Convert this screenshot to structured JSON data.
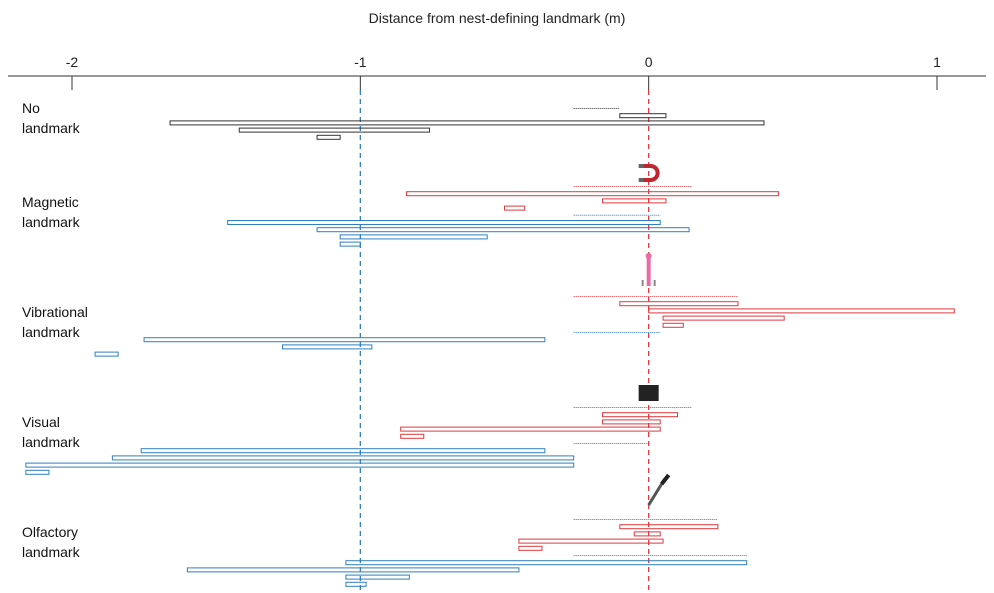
{
  "colors": {
    "control": "#333333",
    "landmark": "#e0393e",
    "no_landmark": "#2f7fc1",
    "ref_minus1": "#2f7fc1",
    "ref_zero": "#e0393e"
  },
  "chart_data": {
    "type": "horizontal-interval",
    "title": "",
    "xlabel": "Distance from nest-defining landmark (m)",
    "xlim": [
      -2.2,
      1.15
    ],
    "xticks": [
      -2,
      -1,
      0,
      1
    ],
    "xtick_labels": [
      "-2",
      "-1",
      "0",
      "1"
    ],
    "reference_lines": [
      -1,
      0
    ],
    "groups": [
      {
        "label": "No\nlandmark",
        "icon": "none",
        "bars": [
          {
            "series": "control",
            "x0": -0.26,
            "x1": -0.1,
            "dotted": true
          },
          {
            "series": "control",
            "x0": -0.1,
            "x1": 0.06
          },
          {
            "series": "control",
            "x0": -1.66,
            "x1": 0.4
          },
          {
            "series": "control",
            "x0": -1.42,
            "x1": -0.76
          },
          {
            "series": "control",
            "x0": -1.15,
            "x1": -1.07
          }
        ]
      },
      {
        "label": "Magnetic\nlandmark",
        "icon": "magnet-icon",
        "bars": [
          {
            "series": "landmark",
            "x0": -0.26,
            "x1": 0.15,
            "dotted": true
          },
          {
            "series": "landmark",
            "x0": -0.84,
            "x1": 0.45
          },
          {
            "series": "landmark",
            "x0": -0.16,
            "x1": 0.06
          },
          {
            "series": "landmark",
            "x0": -0.5,
            "x1": -0.43
          },
          {
            "series": "no_landmark",
            "x0": -0.26,
            "x1": 0.04,
            "dotted": true
          },
          {
            "series": "no_landmark",
            "x0": -1.46,
            "x1": 0.04
          },
          {
            "series": "no_landmark",
            "x0": -1.15,
            "x1": 0.14
          },
          {
            "series": "no_landmark",
            "x0": -1.07,
            "x1": -0.56
          },
          {
            "series": "no_landmark",
            "x0": -1.07,
            "x1": -1.0
          }
        ]
      },
      {
        "label": "Vibrational\nlandmark",
        "icon": "vibration-icon",
        "bars": [
          {
            "series": "landmark",
            "x0": -0.26,
            "x1": 0.31,
            "dotted": true
          },
          {
            "series": "landmark",
            "x0": -0.1,
            "x1": 0.31
          },
          {
            "series": "landmark",
            "x0": 0.0,
            "x1": 1.06
          },
          {
            "series": "landmark",
            "x0": 0.05,
            "x1": 0.47
          },
          {
            "series": "landmark",
            "x0": 0.05,
            "x1": 0.12
          },
          {
            "series": "no_landmark",
            "x0": -0.26,
            "x1": 0.04,
            "dotted": true
          },
          {
            "series": "no_landmark",
            "x0": -1.75,
            "x1": -0.36
          },
          {
            "series": "no_landmark",
            "x0": -1.27,
            "x1": -0.96
          },
          {
            "series": "no_landmark",
            "x0": -1.92,
            "x1": -1.84
          }
        ]
      },
      {
        "label": "Visual\nlandmark",
        "icon": "square-icon",
        "bars": [
          {
            "series": "landmark",
            "x0": -0.26,
            "x1": 0.15,
            "dotted": true
          },
          {
            "series": "landmark",
            "x0": -0.16,
            "x1": 0.1
          },
          {
            "series": "landmark",
            "x0": -0.16,
            "x1": 0.04
          },
          {
            "series": "landmark",
            "x0": -0.86,
            "x1": 0.04
          },
          {
            "series": "landmark",
            "x0": -0.86,
            "x1": -0.78
          },
          {
            "series": "no_landmark",
            "x0": -0.26,
            "x1": 0.0,
            "dotted": true
          },
          {
            "series": "no_landmark",
            "x0": -1.76,
            "x1": -0.36
          },
          {
            "series": "no_landmark",
            "x0": -1.86,
            "x1": -0.26
          },
          {
            "series": "no_landmark",
            "x0": -2.16,
            "x1": -0.26
          },
          {
            "series": "no_landmark",
            "x0": -2.16,
            "x1": -2.08
          }
        ]
      },
      {
        "label": "Olfactory\nlandmark",
        "icon": "pipette-icon",
        "bars": [
          {
            "series": "landmark",
            "x0": -0.26,
            "x1": 0.24,
            "dotted": true
          },
          {
            "series": "landmark",
            "x0": -0.1,
            "x1": 0.24
          },
          {
            "series": "landmark",
            "x0": -0.05,
            "x1": 0.04
          },
          {
            "series": "landmark",
            "x0": -0.45,
            "x1": 0.05
          },
          {
            "series": "landmark",
            "x0": -0.45,
            "x1": -0.37
          },
          {
            "series": "no_landmark",
            "x0": -0.26,
            "x1": 0.34,
            "dotted": true
          },
          {
            "series": "no_landmark",
            "x0": -1.05,
            "x1": 0.34
          },
          {
            "series": "no_landmark",
            "x0": -1.6,
            "x1": -0.45
          },
          {
            "series": "no_landmark",
            "x0": -1.05,
            "x1": -0.83
          },
          {
            "series": "no_landmark",
            "x0": -1.05,
            "x1": -0.98
          }
        ]
      }
    ]
  }
}
